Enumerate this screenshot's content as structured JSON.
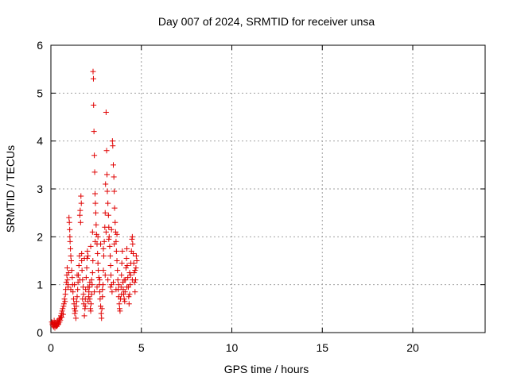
{
  "chart_data": {
    "type": "scatter",
    "title": "Day 007 of 2024, SRMTID for receiver unsa",
    "xlabel": "GPS time / hours",
    "ylabel": "SRMTID / TECUs",
    "xlim": [
      0,
      24
    ],
    "ylim": [
      0,
      6
    ],
    "xticks": [
      0,
      5,
      10,
      15,
      20
    ],
    "yticks": [
      0,
      1,
      2,
      3,
      4,
      5,
      6
    ],
    "grid": true,
    "marker": "+",
    "color": "#e00000",
    "series": [
      {
        "name": "SRMTID",
        "points": [
          [
            0.05,
            0.22
          ],
          [
            0.08,
            0.18
          ],
          [
            0.1,
            0.15
          ],
          [
            0.12,
            0.2
          ],
          [
            0.15,
            0.12
          ],
          [
            0.18,
            0.25
          ],
          [
            0.2,
            0.17
          ],
          [
            0.22,
            0.1
          ],
          [
            0.25,
            0.21
          ],
          [
            0.28,
            0.14
          ],
          [
            0.3,
            0.19
          ],
          [
            0.33,
            0.13
          ],
          [
            0.35,
            0.24
          ],
          [
            0.38,
            0.16
          ],
          [
            0.4,
            0.2
          ],
          [
            0.42,
            0.18
          ],
          [
            0.45,
            0.28
          ],
          [
            0.48,
            0.22
          ],
          [
            0.5,
            0.3
          ],
          [
            0.52,
            0.26
          ],
          [
            0.55,
            0.35
          ],
          [
            0.58,
            0.4
          ],
          [
            0.6,
            0.32
          ],
          [
            0.62,
            0.45
          ],
          [
            0.65,
            0.5
          ],
          [
            0.68,
            0.38
          ],
          [
            0.7,
            0.55
          ],
          [
            0.72,
            0.6
          ],
          [
            0.75,
            0.7
          ],
          [
            0.78,
            0.65
          ],
          [
            0.8,
            0.8
          ],
          [
            0.82,
            0.9
          ],
          [
            0.85,
            1.05
          ],
          [
            0.88,
            1.2
          ],
          [
            0.9,
            1.35
          ],
          [
            0.92,
            1.1
          ],
          [
            0.95,
            0.95
          ],
          [
            0.98,
            1.25
          ],
          [
            1.0,
            2.4
          ],
          [
            1.02,
            2.3
          ],
          [
            1.04,
            2.15
          ],
          [
            1.05,
            2.0
          ],
          [
            1.06,
            1.9
          ],
          [
            1.08,
            1.75
          ],
          [
            1.1,
            1.6
          ],
          [
            1.12,
            1.5
          ],
          [
            1.15,
            1.3
          ],
          [
            1.18,
            1.15
          ],
          [
            1.2,
            1.0
          ],
          [
            1.22,
            0.85
          ],
          [
            1.25,
            0.7
          ],
          [
            1.28,
            0.6
          ],
          [
            1.3,
            0.5
          ],
          [
            1.32,
            0.4
          ],
          [
            1.35,
            0.45
          ],
          [
            1.38,
            0.3
          ],
          [
            1.4,
            0.55
          ],
          [
            1.42,
            0.65
          ],
          [
            1.45,
            0.75
          ],
          [
            1.48,
            0.9
          ],
          [
            1.5,
            1.05
          ],
          [
            1.52,
            1.2
          ],
          [
            1.55,
            1.4
          ],
          [
            1.58,
            1.6
          ],
          [
            1.6,
            2.45
          ],
          [
            1.62,
            2.55
          ],
          [
            1.64,
            2.3
          ],
          [
            1.66,
            2.85
          ],
          [
            1.68,
            2.7
          ],
          [
            1.7,
            1.5
          ],
          [
            1.72,
            1.3
          ],
          [
            1.75,
            1.1
          ],
          [
            1.78,
            0.95
          ],
          [
            1.8,
            0.8
          ],
          [
            1.82,
            0.6
          ],
          [
            1.85,
            0.35
          ],
          [
            1.88,
            0.5
          ],
          [
            1.9,
            0.7
          ],
          [
            1.92,
            0.9
          ],
          [
            1.95,
            1.15
          ],
          [
            1.98,
            1.35
          ],
          [
            2.0,
            1.55
          ],
          [
            2.02,
            1.7
          ],
          [
            2.05,
            0.65
          ],
          [
            2.08,
            0.75
          ],
          [
            2.1,
            0.85
          ],
          [
            2.12,
            0.95
          ],
          [
            2.15,
            1.05
          ],
          [
            2.18,
            0.5
          ],
          [
            2.2,
            0.45
          ],
          [
            2.22,
            0.6
          ],
          [
            2.25,
            0.8
          ],
          [
            2.28,
            1.0
          ],
          [
            2.3,
            1.25
          ],
          [
            2.32,
            1.5
          ],
          [
            2.33,
            5.45
          ],
          [
            2.35,
            5.3
          ],
          [
            2.36,
            4.75
          ],
          [
            2.38,
            4.2
          ],
          [
            2.4,
            3.7
          ],
          [
            2.42,
            3.35
          ],
          [
            2.44,
            2.9
          ],
          [
            2.46,
            2.7
          ],
          [
            2.48,
            2.5
          ],
          [
            2.5,
            2.25
          ],
          [
            2.52,
            2.05
          ],
          [
            2.55,
            1.85
          ],
          [
            2.58,
            1.65
          ],
          [
            2.6,
            1.45
          ],
          [
            2.62,
            1.3
          ],
          [
            2.65,
            1.15
          ],
          [
            2.68,
            1.0
          ],
          [
            2.7,
            0.85
          ],
          [
            2.72,
            0.7
          ],
          [
            2.75,
            0.55
          ],
          [
            2.78,
            0.4
          ],
          [
            2.8,
            0.3
          ],
          [
            2.82,
            0.5
          ],
          [
            2.85,
            0.75
          ],
          [
            2.88,
            1.0
          ],
          [
            2.9,
            1.3
          ],
          [
            2.92,
            1.6
          ],
          [
            2.95,
            1.9
          ],
          [
            2.98,
            2.2
          ],
          [
            3.0,
            2.5
          ],
          [
            3.02,
            3.1
          ],
          [
            3.05,
            4.6
          ],
          [
            3.08,
            3.8
          ],
          [
            3.1,
            3.3
          ],
          [
            3.12,
            2.95
          ],
          [
            3.15,
            2.7
          ],
          [
            3.18,
            2.45
          ],
          [
            3.2,
            2.2
          ],
          [
            3.22,
            2.0
          ],
          [
            3.25,
            1.8
          ],
          [
            3.28,
            1.6
          ],
          [
            3.3,
            1.4
          ],
          [
            3.32,
            1.2
          ],
          [
            3.35,
            1.0
          ],
          [
            3.38,
            0.85
          ],
          [
            3.4,
            4.0
          ],
          [
            3.42,
            3.9
          ],
          [
            3.45,
            3.5
          ],
          [
            3.48,
            3.25
          ],
          [
            3.5,
            2.95
          ],
          [
            3.52,
            2.6
          ],
          [
            3.55,
            2.3
          ],
          [
            3.58,
            2.1
          ],
          [
            3.6,
            1.9
          ],
          [
            3.62,
            1.7
          ],
          [
            3.65,
            1.5
          ],
          [
            3.68,
            1.3
          ],
          [
            3.7,
            1.1
          ],
          [
            3.72,
            0.9
          ],
          [
            3.75,
            0.75
          ],
          [
            3.78,
            0.6
          ],
          [
            3.8,
            0.5
          ],
          [
            3.82,
            0.45
          ],
          [
            3.85,
            0.7
          ],
          [
            3.88,
            0.95
          ],
          [
            3.9,
            1.2
          ],
          [
            3.92,
            1.45
          ],
          [
            3.95,
            1.7
          ],
          [
            3.98,
            1.05
          ],
          [
            4.0,
            0.9
          ],
          [
            4.02,
            0.8
          ],
          [
            4.05,
            0.7
          ],
          [
            4.08,
            0.65
          ],
          [
            4.1,
            0.85
          ],
          [
            4.12,
            1.1
          ],
          [
            4.15,
            1.35
          ],
          [
            4.18,
            1.55
          ],
          [
            4.2,
            1.75
          ],
          [
            4.22,
            1.4
          ],
          [
            4.25,
            1.15
          ],
          [
            4.28,
            0.95
          ],
          [
            4.3,
            0.75
          ],
          [
            4.32,
            0.6
          ],
          [
            4.35,
            0.8
          ],
          [
            4.38,
            1.0
          ],
          [
            4.4,
            1.2
          ],
          [
            4.42,
            1.45
          ],
          [
            4.45,
            1.7
          ],
          [
            4.48,
            1.95
          ],
          [
            4.5,
            2.0
          ],
          [
            4.52,
            1.85
          ],
          [
            4.55,
            1.65
          ],
          [
            4.58,
            1.45
          ],
          [
            4.6,
            1.25
          ],
          [
            4.62,
            1.05
          ],
          [
            4.65,
            0.85
          ],
          [
            4.68,
            1.1
          ],
          [
            4.7,
            1.35
          ],
          [
            4.72,
            1.6
          ],
          [
            4.75,
            1.5
          ],
          [
            0.95,
            1.0
          ],
          [
            1.1,
            0.9
          ],
          [
            1.3,
            1.0
          ],
          [
            1.45,
            1.2
          ],
          [
            1.6,
            1.1
          ],
          [
            1.75,
            0.7
          ],
          [
            1.9,
            0.55
          ],
          [
            2.05,
            0.95
          ],
          [
            2.15,
            0.7
          ],
          [
            2.25,
            1.1
          ],
          [
            2.4,
            0.85
          ],
          [
            2.55,
            0.95
          ],
          [
            2.7,
            1.1
          ],
          [
            2.85,
            0.9
          ],
          [
            3.0,
            1.2
          ],
          [
            3.15,
            1.1
          ],
          [
            3.3,
            0.95
          ],
          [
            3.45,
            1.05
          ],
          [
            3.6,
            0.9
          ],
          [
            3.75,
            1.0
          ],
          [
            3.9,
            0.8
          ],
          [
            4.05,
            1.1
          ],
          [
            4.2,
            0.95
          ],
          [
            4.35,
            1.25
          ],
          [
            4.5,
            1.1
          ],
          [
            4.65,
            1.3
          ],
          [
            2.6,
            2.0
          ],
          [
            2.75,
            1.85
          ],
          [
            2.9,
            1.75
          ],
          [
            3.05,
            2.1
          ],
          [
            3.2,
            1.95
          ],
          [
            3.35,
            2.15
          ],
          [
            3.5,
            1.85
          ],
          [
            3.65,
            2.05
          ],
          [
            2.45,
            1.9
          ],
          [
            2.3,
            2.1
          ],
          [
            2.2,
            1.8
          ],
          [
            2.05,
            1.6
          ],
          [
            1.85,
            1.55
          ],
          [
            1.7,
            1.65
          ]
        ]
      }
    ]
  }
}
